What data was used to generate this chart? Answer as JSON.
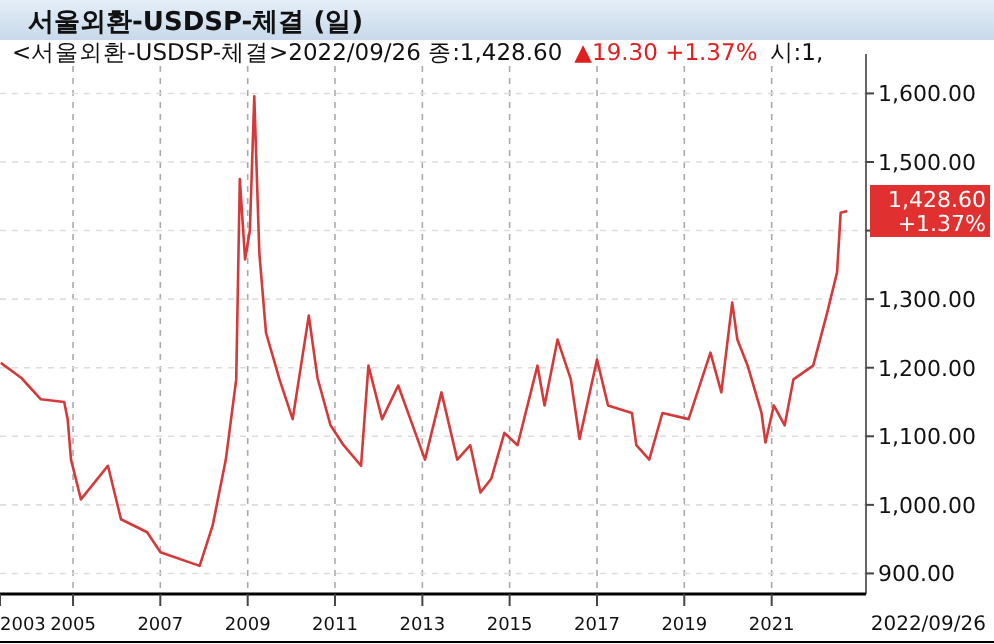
{
  "chart_data": {
    "type": "line",
    "title": "서울외환-USDSP-체결 (일)",
    "annotations": [
      "<서울외환-USDSP-체결>2022/09/26 종:1,428.60",
      "▲19.30 +1.37%",
      "시:1,",
      {
        "text": "1,428.60\n+1.37%",
        "x": "2022-09-26",
        "y": 1428.6
      },
      "2022/09/26"
    ],
    "x": [
      "2003-05-08",
      "2003-10-27",
      "2004-04-07",
      "2004-10-19",
      "2004-11-17",
      "2004-12-15",
      "2005-03-08",
      "2005-10-20",
      "2006-02-06",
      "2006-09-13",
      "2007-01-02",
      "2007-11-26",
      "2008-03-14",
      "2008-07-02",
      "2008-09-27",
      "2008-10-27",
      "2008-12-10",
      "2009-01-19",
      "2009-02-25",
      "2009-04-08",
      "2009-06-03",
      "2009-09-24",
      "2010-01-12",
      "2010-05-27",
      "2010-08-08",
      "2010-11-25",
      "2011-03-14",
      "2011-08-07",
      "2011-10-08",
      "2012-01-30",
      "2012-06-13",
      "2013-01-23",
      "2013-06-10",
      "2013-10-20",
      "2014-02-06",
      "2014-05-02",
      "2014-07-31",
      "2014-11-18",
      "2015-03-08",
      "2015-08-22",
      "2015-10-20",
      "2016-02-06",
      "2016-05-27",
      "2016-08-08",
      "2017-01-01",
      "2017-04-03",
      "2017-10-20",
      "2017-11-26",
      "2018-03-14",
      "2018-07-02",
      "2019-02-06",
      "2019-08-08",
      "2019-11-07",
      "2020-02-06",
      "2020-03-20",
      "2020-06-14",
      "2020-10-08",
      "2020-11-10",
      "2021-01-19",
      "2021-04-20",
      "2021-07-02",
      "2021-12-14",
      "2022-04-10",
      "2022-07-02",
      "2022-08-01",
      "2022-09-26"
    ],
    "series": [
      {
        "color": "#d43a3a",
        "values": [
          1207,
          1185,
          1154,
          1150,
          1125,
          1066,
          1008,
          1057,
          979,
          960,
          931,
          911,
          970,
          1066,
          1183,
          1475,
          1358,
          1400,
          1596,
          1368,
          1251,
          1183,
          1125,
          1276,
          1185,
          1116,
          1087,
          1057,
          1203,
          1125,
          1174,
          1066,
          1164,
          1066,
          1087,
          1018,
          1038,
          1105,
          1087,
          1203,
          1145,
          1241,
          1183,
          1096,
          1212,
          1145,
          1134,
          1087,
          1066,
          1134,
          1125,
          1222,
          1164,
          1295,
          1241,
          1203,
          1134,
          1091,
          1145,
          1116,
          1183,
          1203,
          1280,
          1339,
          1426,
          1428.6
        ]
      }
    ],
    "xlim": [
      "2003-05-01",
      "2023-03-01"
    ],
    "ylim": [
      870,
      1640
    ],
    "xticks": [
      {
        "value": "2003-05-01",
        "label": "2003"
      },
      {
        "value": "2005-01-01",
        "label": "2005"
      },
      {
        "value": "2007-01-01",
        "label": "2007"
      },
      {
        "value": "2009-01-01",
        "label": "2009"
      },
      {
        "value": "2011-01-01",
        "label": "2011"
      },
      {
        "value": "2013-01-01",
        "label": "2013"
      },
      {
        "value": "2015-01-01",
        "label": "2015"
      },
      {
        "value": "2017-01-01",
        "label": "2017"
      },
      {
        "value": "2019-01-01",
        "label": "2019"
      },
      {
        "value": "2021-01-01",
        "label": "2021"
      }
    ],
    "yticks": [
      {
        "value": 900,
        "label": "900.00"
      },
      {
        "value": 1000,
        "label": "1,000.00"
      },
      {
        "value": 1100,
        "label": "1,100.00"
      },
      {
        "value": 1200,
        "label": "1,200.00"
      },
      {
        "value": 1300,
        "label": "1,300.00"
      },
      {
        "value": 1400,
        "label": null
      },
      {
        "value": 1500,
        "label": "1,500.00"
      },
      {
        "value": 1600,
        "label": "1,600.00"
      }
    ],
    "grid": true
  }
}
